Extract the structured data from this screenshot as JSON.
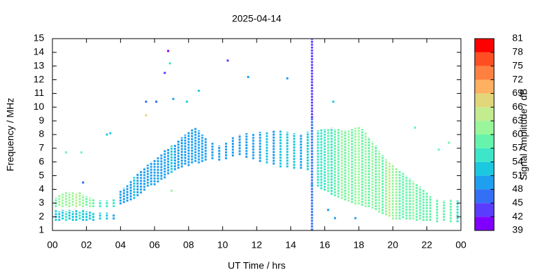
{
  "chart_data": {
    "type": "heatmap",
    "title": "2025-04-14",
    "x_label": "UT Time / hrs",
    "y_label": "Frequency / MHz",
    "colorbar_label": "Signal Amplitude / dB",
    "xlim": [
      0,
      24
    ],
    "xticks": [
      {
        "value": 0,
        "label": "00"
      },
      {
        "value": 2,
        "label": "02"
      },
      {
        "value": 4,
        "label": "04"
      },
      {
        "value": 6,
        "label": "06"
      },
      {
        "value": 8,
        "label": "08"
      },
      10,
      12,
      14,
      16,
      18,
      20,
      22,
      {
        "value": 24,
        "label": "00"
      }
    ],
    "ylim": [
      1,
      15
    ],
    "yticks": [
      1,
      2,
      3,
      4,
      5,
      6,
      7,
      8,
      9,
      10,
      11,
      12,
      13,
      14,
      15
    ],
    "clim": [
      39,
      81
    ],
    "cticks": [
      39,
      42,
      45,
      48,
      51,
      54,
      57,
      60,
      63,
      66,
      69,
      72,
      75,
      78,
      81
    ],
    "colors": [
      "#8000ff",
      "#5a3cff",
      "#3470f5",
      "#1f9ff0",
      "#1cc8e0",
      "#3de6c8",
      "#66f4ac",
      "#9af69a",
      "#c2ec8e",
      "#e2d67a",
      "#ffb060",
      "#ff8040",
      "#ff4e22",
      "#ff0000"
    ],
    "runs": [
      [
        0.2,
        1.7,
        2.5,
        52
      ],
      [
        0.2,
        2.7,
        3.4,
        58
      ],
      [
        0.4,
        1.7,
        2.4,
        53
      ],
      [
        0.4,
        2.8,
        3.6,
        60
      ],
      [
        0.6,
        1.8,
        2.5,
        52
      ],
      [
        0.6,
        2.7,
        3.7,
        61
      ],
      [
        0.8,
        1.7,
        2.4,
        54
      ],
      [
        0.8,
        2.8,
        3.8,
        60
      ],
      [
        1.0,
        1.8,
        2.5,
        52
      ],
      [
        1.0,
        2.7,
        3.8,
        62
      ],
      [
        1.2,
        1.7,
        2.4,
        53
      ],
      [
        1.2,
        2.8,
        3.8,
        61
      ],
      [
        1.4,
        1.7,
        2.5,
        52
      ],
      [
        1.4,
        2.7,
        3.7,
        63
      ],
      [
        1.6,
        1.8,
        2.4,
        54
      ],
      [
        1.6,
        2.8,
        3.8,
        61
      ],
      [
        1.8,
        1.7,
        2.5,
        52
      ],
      [
        1.8,
        2.7,
        3.6,
        60
      ],
      [
        2.0,
        1.7,
        2.4,
        53
      ],
      [
        2.0,
        2.8,
        3.5,
        58
      ],
      [
        2.2,
        1.8,
        2.4,
        52
      ],
      [
        2.2,
        2.7,
        3.4,
        60
      ],
      [
        2.4,
        1.7,
        2.3,
        53
      ],
      [
        2.4,
        2.7,
        3.3,
        57
      ],
      [
        2.8,
        1.8,
        2.3,
        52
      ],
      [
        2.8,
        2.7,
        3.2,
        55
      ],
      [
        3.2,
        1.8,
        2.3,
        51
      ],
      [
        3.2,
        2.7,
        3.2,
        55
      ],
      [
        3.6,
        1.8,
        2.2,
        50
      ],
      [
        3.6,
        2.7,
        3.3,
        54
      ],
      [
        4.0,
        2.9,
        3.9,
        50
      ],
      [
        4.2,
        3.0,
        4.1,
        49
      ],
      [
        4.4,
        3.1,
        4.3,
        50
      ],
      [
        4.6,
        3.2,
        4.6,
        49
      ],
      [
        4.8,
        3.3,
        4.9,
        51
      ],
      [
        5.0,
        3.5,
        5.2,
        50
      ],
      [
        5.2,
        3.7,
        5.4,
        49
      ],
      [
        5.4,
        3.9,
        5.6,
        50
      ],
      [
        5.6,
        4.2,
        5.8,
        49
      ],
      [
        5.8,
        4.3,
        6.0,
        50
      ],
      [
        6.0,
        4.3,
        6.2,
        49
      ],
      [
        6.2,
        4.5,
        6.4,
        50
      ],
      [
        6.4,
        4.7,
        6.6,
        48
      ],
      [
        6.6,
        4.8,
        6.9,
        50
      ],
      [
        6.8,
        5.1,
        7.0,
        49
      ],
      [
        7.0,
        5.2,
        7.2,
        51
      ],
      [
        7.2,
        5.4,
        7.3,
        49
      ],
      [
        7.4,
        5.5,
        7.6,
        50
      ],
      [
        7.6,
        5.6,
        7.8,
        49
      ],
      [
        7.8,
        5.8,
        8.0,
        50
      ],
      [
        8.0,
        5.7,
        8.2,
        48
      ],
      [
        8.2,
        5.9,
        8.4,
        49
      ],
      [
        8.4,
        6.0,
        8.5,
        50
      ],
      [
        8.6,
        5.9,
        8.3,
        48
      ],
      [
        8.8,
        6.0,
        8.0,
        50
      ],
      [
        9.0,
        6.1,
        7.8,
        49
      ],
      [
        9.4,
        6.2,
        7.4,
        49
      ],
      [
        9.8,
        6.1,
        7.2,
        48
      ],
      [
        10.2,
        6.2,
        7.4,
        49
      ],
      [
        10.6,
        6.4,
        7.8,
        50
      ],
      [
        11.0,
        6.5,
        8.0,
        49
      ],
      [
        11.4,
        6.3,
        8.1,
        48
      ],
      [
        11.8,
        6.2,
        8.1,
        50
      ],
      [
        12.2,
        6.0,
        8.2,
        49
      ],
      [
        12.6,
        5.9,
        8.2,
        52
      ],
      [
        13.0,
        5.8,
        8.3,
        50
      ],
      [
        13.4,
        5.6,
        8.3,
        53
      ],
      [
        13.8,
        5.6,
        8.2,
        51
      ],
      [
        14.2,
        5.5,
        8.1,
        52
      ],
      [
        14.6,
        5.5,
        8.0,
        50
      ],
      [
        15.0,
        5.4,
        8.2,
        53
      ],
      [
        15.25,
        1.0,
        9.2,
        47
      ],
      [
        15.25,
        9.2,
        15.0,
        42
      ],
      [
        15.6,
        4.2,
        8.3,
        54
      ],
      [
        15.8,
        4.0,
        8.4,
        56
      ],
      [
        16.0,
        3.9,
        8.4,
        55
      ],
      [
        16.2,
        3.8,
        8.4,
        58
      ],
      [
        16.4,
        3.6,
        8.5,
        56
      ],
      [
        16.6,
        3.5,
        8.4,
        59
      ],
      [
        16.8,
        3.4,
        8.4,
        57
      ],
      [
        17.0,
        3.3,
        8.3,
        60
      ],
      [
        17.2,
        3.2,
        8.3,
        58
      ],
      [
        17.4,
        3.1,
        8.3,
        61
      ],
      [
        17.6,
        3.0,
        8.4,
        59
      ],
      [
        17.8,
        2.9,
        8.5,
        62
      ],
      [
        18.0,
        2.9,
        8.6,
        60
      ],
      [
        18.2,
        2.8,
        8.4,
        58
      ],
      [
        18.4,
        2.7,
        8.2,
        61
      ],
      [
        18.6,
        2.7,
        7.8,
        59
      ],
      [
        18.8,
        2.6,
        7.5,
        60
      ],
      [
        19.0,
        2.5,
        7.2,
        58
      ],
      [
        19.2,
        2.3,
        6.8,
        60
      ],
      [
        19.4,
        2.2,
        6.5,
        58
      ],
      [
        19.6,
        2.1,
        6.2,
        61
      ],
      [
        19.8,
        2.0,
        6.0,
        63
      ],
      [
        20.0,
        1.8,
        5.8,
        62
      ],
      [
        20.2,
        1.8,
        5.6,
        60
      ],
      [
        20.4,
        1.8,
        5.4,
        58
      ],
      [
        20.6,
        1.9,
        5.2,
        59
      ],
      [
        20.8,
        1.8,
        5.0,
        57
      ],
      [
        21.0,
        1.8,
        4.8,
        58
      ],
      [
        21.2,
        1.8,
        4.6,
        60
      ],
      [
        21.4,
        1.7,
        4.4,
        57
      ],
      [
        21.6,
        1.8,
        4.2,
        58
      ],
      [
        21.8,
        1.7,
        4.0,
        59
      ],
      [
        22.0,
        1.7,
        3.8,
        57
      ],
      [
        22.2,
        1.7,
        3.5,
        58
      ],
      [
        22.6,
        1.6,
        3.3,
        57
      ],
      [
        23.0,
        1.7,
        3.2,
        58
      ],
      [
        23.4,
        1.6,
        3.3,
        57
      ],
      [
        23.8,
        1.6,
        3.2,
        56
      ]
    ],
    "points": [
      [
        6.8,
        14.1,
        40
      ],
      [
        6.9,
        13.2,
        56
      ],
      [
        6.6,
        12.5,
        43
      ],
      [
        10.3,
        13.4,
        43
      ],
      [
        11.5,
        12.2,
        50
      ],
      [
        13.8,
        12.1,
        50
      ],
      [
        5.5,
        10.4,
        47
      ],
      [
        6.1,
        10.4,
        47
      ],
      [
        7.1,
        10.6,
        50
      ],
      [
        8.6,
        11.2,
        53
      ],
      [
        7.9,
        10.4,
        53
      ],
      [
        5.5,
        9.4,
        66
      ],
      [
        3.2,
        8.0,
        52
      ],
      [
        3.4,
        8.1,
        52
      ],
      [
        0.8,
        6.7,
        57
      ],
      [
        1.7,
        6.7,
        57
      ],
      [
        1.8,
        4.5,
        47
      ],
      [
        16.5,
        10.4,
        52
      ],
      [
        21.3,
        8.5,
        57
      ],
      [
        22.7,
        6.9,
        57
      ],
      [
        23.3,
        7.4,
        57
      ],
      [
        7.0,
        3.9,
        60
      ],
      [
        16.2,
        2.5,
        50
      ],
      [
        16.6,
        1.9,
        49
      ],
      [
        17.8,
        1.9,
        48
      ],
      [
        15.25,
        4.3,
        48
      ]
    ]
  }
}
